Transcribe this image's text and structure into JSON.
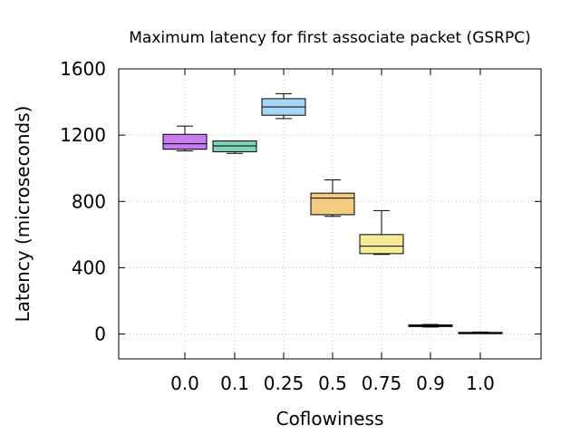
{
  "chart_data": {
    "type": "boxplot",
    "title": "Maximum latency for first associate packet (GSRPC)",
    "xlabel": "Coflowiness",
    "ylabel": "Latency (microseconds)",
    "ylim": [
      -150,
      1600
    ],
    "yticks": [
      0,
      400,
      800,
      1200,
      1600
    ],
    "grid": true,
    "categories": [
      "0.0",
      "0.1",
      "0.25",
      "0.5",
      "0.75",
      "0.9",
      "1.0"
    ],
    "boxes": [
      {
        "category": "0.0",
        "min": 1105,
        "q1": 1115,
        "median": 1148,
        "q3": 1205,
        "max": 1255,
        "color": "#c77cf0"
      },
      {
        "category": "0.1",
        "min": 1090,
        "q1": 1100,
        "median": 1135,
        "q3": 1165,
        "max": 1165,
        "color": "#7fd3b5"
      },
      {
        "category": "0.25",
        "min": 1300,
        "q1": 1320,
        "median": 1370,
        "q3": 1420,
        "max": 1450,
        "color": "#a7d7f7"
      },
      {
        "category": "0.5",
        "min": 710,
        "q1": 720,
        "median": 820,
        "q3": 850,
        "max": 930,
        "color": "#f2cc7f"
      },
      {
        "category": "0.75",
        "min": 480,
        "q1": 485,
        "median": 530,
        "q3": 600,
        "max": 745,
        "color": "#f5ea96"
      },
      {
        "category": "0.9",
        "min": 42,
        "q1": 45,
        "median": 50,
        "q3": 55,
        "max": 58,
        "color": "#4a90d9"
      },
      {
        "category": "1.0",
        "min": 5,
        "q1": 6,
        "median": 8,
        "q3": 10,
        "max": 12,
        "color": "#e35d3a"
      }
    ]
  }
}
